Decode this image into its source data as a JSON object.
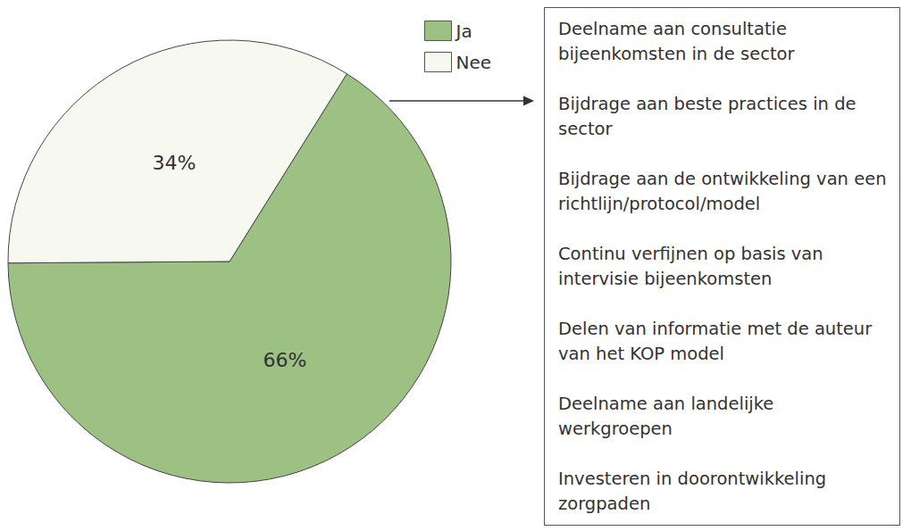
{
  "chart_data": {
    "type": "pie",
    "categories": [
      "Ja",
      "Nee"
    ],
    "values": [
      66,
      34
    ],
    "value_labels": [
      "66%",
      "34%"
    ],
    "colors": [
      "#9dc183",
      "#f7f9f1"
    ],
    "data_labels": true,
    "legend": "top",
    "annotations": [
      "Deelname aan consultatie bijeenkomsten in de sector",
      "Bijdrage aan beste practices in de sector",
      "Bijdrage aan de ontwikkeling van een richtlijn/protocol/model",
      "Continu verfijnen op basis van intervisie bijeenkomsten",
      "Delen van informatie met de auteur van het KOP model",
      "Deelname aan landelijke werkgroepen",
      "Investeren in doorontwikkeling zorgpaden"
    ]
  }
}
